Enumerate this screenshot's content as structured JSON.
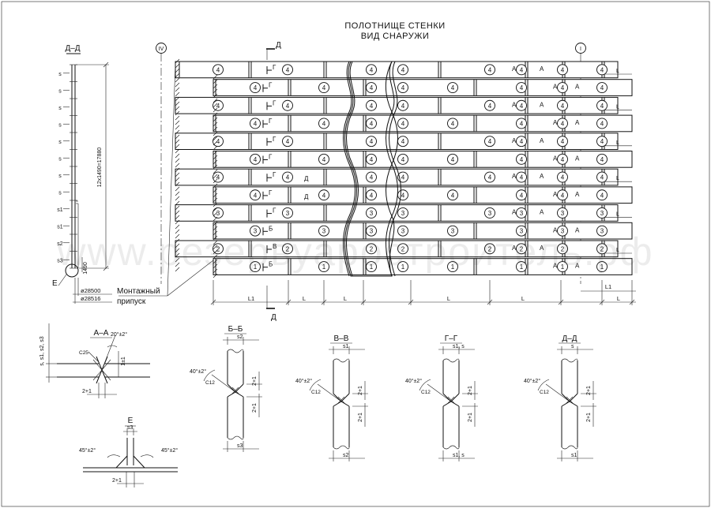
{
  "title": {
    "line1": "ПОЛОТНИЩЕ СТЕНКИ",
    "line2": "ВИД СНАРУЖИ"
  },
  "watermark": "www.резервуаростроитель.рф",
  "axes": {
    "left": "IV",
    "right": "I"
  },
  "section_dd_left": {
    "title": "Д–Д",
    "belt_labels": [
      "s",
      "s",
      "s",
      "s",
      "s",
      "s",
      "s",
      "s",
      "s1",
      "s1",
      "s2",
      "s3"
    ],
    "height_dim": "12х1490=17880",
    "bottom_dim": "1490",
    "dia_outer": "ø28500",
    "dia_inner": "ø28516",
    "node_label": "Е"
  },
  "wall": {
    "rows": [
      {
        "n": "4"
      },
      {
        "n": "4"
      },
      {
        "n": "4"
      },
      {
        "n": "4"
      },
      {
        "n": "4"
      },
      {
        "n": "4"
      },
      {
        "n": "4"
      },
      {
        "n": "4"
      },
      {
        "n": "3"
      },
      {
        "n": "3"
      },
      {
        "n": "2"
      },
      {
        "n": "1"
      }
    ],
    "markers": {
      "a": "А",
      "g": "Г",
      "d": "Д",
      "b": "Б",
      "v": "В"
    },
    "allowance": "Монтажный припуск",
    "dims": {
      "l1_left": "L1",
      "l": "L",
      "l1_right": "L1",
      "cut_d": "Д"
    }
  },
  "details": {
    "aa": {
      "title": "А–А",
      "angle": "20°±2°",
      "chamfer": "С25",
      "left_label": "s, s1, s2, s3",
      "gap_v": "1±1",
      "gap_h": "2+1"
    },
    "bb": {
      "title": "Б–Б",
      "top": "s2",
      "angle": "40°±2°",
      "chamfer": "С12",
      "gap_a": "2+1",
      "gap_b": "2+1",
      "bottom": "s3"
    },
    "vv": {
      "title": "В–В",
      "top": "s1",
      "angle": "40°±2°",
      "chamfer": "С12",
      "gap_a": "2+1",
      "gap_b": "2+1",
      "bottom": "s2"
    },
    "gg": {
      "title": "Г–Г",
      "top": "s1, s",
      "angle": "40°±2°",
      "chamfer": "С12",
      "gap_a": "2+1",
      "gap_b": "2+1",
      "bottom": "s1, s"
    },
    "dd": {
      "title": "Д–Д",
      "top": "s",
      "angle": "40°±2°",
      "chamfer": "С12",
      "gap_a": "2+1",
      "gap_b": "2+1",
      "bottom": "s1"
    },
    "e": {
      "title": "Е",
      "top": "s3",
      "angle_l": "45°±2°",
      "angle_r": "45°±2°",
      "gap": "2+1"
    }
  }
}
